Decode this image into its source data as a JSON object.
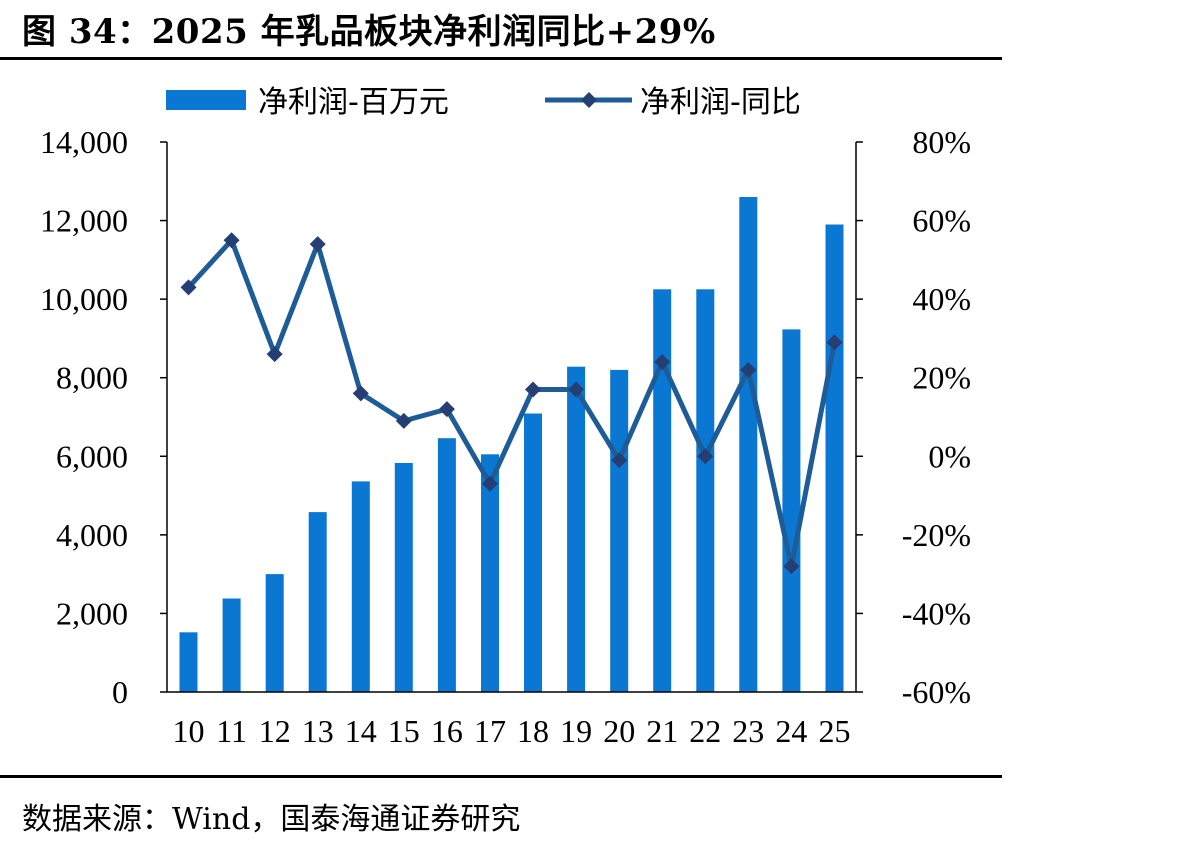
{
  "title": "图 34：2025 年乳品板块净利润同比+29%",
  "source": "数据来源：Wind，国泰海通证券研究",
  "colors": {
    "bar": "#0a78d2",
    "line": "#1d5c96",
    "marker": "#253e73",
    "axis": "#000000"
  },
  "chart_data": {
    "type": "bar+line",
    "categories": [
      "10",
      "11",
      "12",
      "13",
      "14",
      "15",
      "16",
      "17",
      "18",
      "19",
      "20",
      "21",
      "22",
      "23",
      "24",
      "25"
    ],
    "series": [
      {
        "name": "净利润-百万元",
        "type": "bar",
        "axis": "left",
        "values": [
          1520,
          2380,
          3000,
          4580,
          5360,
          5830,
          6460,
          6050,
          7090,
          8280,
          8200,
          10250,
          10250,
          12600,
          9230,
          11900
        ]
      },
      {
        "name": "净利润-同比",
        "type": "line",
        "axis": "right",
        "marker": "diamond",
        "values": [
          0.43,
          0.55,
          0.26,
          0.54,
          0.16,
          0.09,
          0.12,
          -0.07,
          0.17,
          0.17,
          -0.01,
          0.24,
          0.0,
          0.22,
          -0.28,
          0.29
        ]
      }
    ],
    "y_left": {
      "ylim": [
        0,
        14000
      ],
      "ticks": [
        "0",
        "2,000",
        "4,000",
        "6,000",
        "8,000",
        "10,000",
        "12,000",
        "14,000"
      ]
    },
    "y_right": {
      "ylim": [
        -0.6,
        0.8
      ],
      "ticks": [
        "-60%",
        "-40%",
        "-20%",
        "0%",
        "20%",
        "40%",
        "60%",
        "80%"
      ]
    },
    "legend_position": "top",
    "grid": false
  }
}
